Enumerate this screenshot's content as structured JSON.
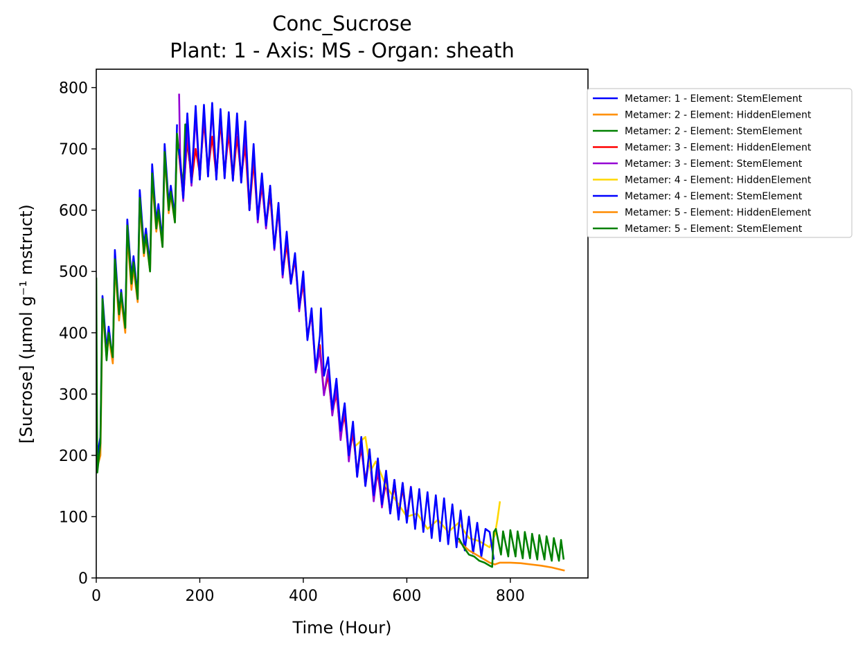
{
  "chart_data": {
    "type": "line",
    "title": "Conc_Sucrose",
    "subtitle": "Plant: 1 - Axis: MS - Organ: sheath",
    "xlabel": "Time (Hour)",
    "ylabel": "[Sucrose] (µmol g⁻¹ mstruct)",
    "xlim": [
      0,
      950
    ],
    "ylim": [
      0,
      830
    ],
    "xticks": [
      0,
      200,
      400,
      600,
      800
    ],
    "yticks": [
      0,
      100,
      200,
      300,
      400,
      500,
      600,
      700,
      800
    ],
    "grid": false,
    "legend_position": "right, outside plot",
    "series": [
      {
        "name": "Metamer: 1 - Element: StemElement",
        "color": "#0000ff",
        "x": [
          0,
          8,
          12,
          20,
          24,
          32,
          36,
          44,
          48,
          56,
          60,
          68,
          72,
          80,
          84,
          92,
          96,
          104,
          108,
          116,
          120,
          128,
          132,
          140,
          144,
          152,
          156
        ],
        "y": [
          190,
          230,
          460,
          370,
          410,
          355,
          535,
          430,
          470,
          410,
          585,
          490,
          525,
          460,
          633,
          540,
          570,
          510,
          675,
          580,
          610,
          550,
          708,
          610,
          640,
          590,
          740
        ]
      },
      {
        "name": "Metamer: 2 - Element: HiddenElement",
        "color": "#ff8c00",
        "x": [
          0,
          8,
          12,
          20,
          24,
          32,
          36,
          44,
          48,
          56,
          60,
          68,
          72,
          80,
          84,
          92,
          96,
          104,
          108,
          116,
          120,
          128,
          132,
          140,
          144,
          152,
          156
        ],
        "y": [
          175,
          200,
          440,
          360,
          395,
          350,
          510,
          420,
          455,
          400,
          560,
          470,
          505,
          450,
          610,
          525,
          555,
          500,
          650,
          565,
          595,
          540,
          690,
          595,
          625,
          580,
          720
        ]
      },
      {
        "name": "Metamer: 2 - Element: StemElement",
        "color": "#008000",
        "x": [
          0,
          2,
          8,
          12,
          20,
          24,
          32,
          36,
          44,
          48,
          56,
          60,
          68,
          72,
          80,
          84,
          92,
          96,
          104,
          108,
          116,
          120,
          128,
          132,
          140,
          144,
          152,
          156,
          160,
          168,
          172,
          180
        ],
        "y": [
          490,
          172,
          220,
          455,
          355,
          400,
          360,
          520,
          430,
          465,
          408,
          575,
          480,
          515,
          455,
          620,
          530,
          560,
          500,
          660,
          570,
          600,
          540,
          695,
          600,
          630,
          580,
          725,
          690,
          640,
          740,
          680
        ]
      },
      {
        "name": "Metamer: 3 - Element: HiddenElement",
        "color": "#ff0000",
        "x": [
          160,
          168,
          176,
          184,
          192,
          200,
          208,
          216,
          224,
          232,
          240,
          248,
          256,
          264,
          272,
          280,
          288,
          296,
          304,
          312,
          320,
          328,
          336,
          344,
          352,
          360,
          368,
          376,
          384,
          392,
          400,
          408,
          416,
          424,
          432,
          440,
          448,
          456,
          464,
          472,
          480,
          488,
          496,
          504,
          512,
          520,
          528,
          536,
          544,
          552,
          560,
          568,
          576,
          584,
          592,
          600,
          608
        ],
        "y": [
          690,
          620,
          720,
          645,
          700,
          660,
          745,
          665,
          720,
          655,
          745,
          660,
          725,
          650,
          720,
          655,
          705,
          600,
          680,
          585,
          640,
          575,
          625,
          540,
          600,
          495,
          545,
          480,
          520,
          440,
          480,
          395,
          430,
          340,
          380,
          300,
          330,
          270,
          300,
          235,
          265,
          200,
          235,
          175,
          210,
          160,
          195,
          140,
          170,
          120,
          155,
          110,
          150,
          105,
          145,
          100,
          140
        ]
      },
      {
        "name": "Metamer: 3 - Element: StemElement",
        "color": "#9400d3",
        "x": [
          160,
          162,
          168,
          176,
          184,
          192,
          200,
          208,
          216,
          224,
          232,
          240,
          248,
          256,
          264,
          272,
          280,
          288,
          296,
          304,
          312,
          320,
          328,
          336,
          344,
          352,
          360,
          368,
          376,
          384,
          392,
          400,
          408,
          416,
          424,
          432,
          440,
          448,
          456,
          464,
          472,
          480,
          488,
          496,
          504,
          512,
          520,
          528,
          536,
          544,
          552,
          560,
          568,
          576,
          584,
          592,
          600,
          608
        ],
        "y": [
          790,
          690,
          615,
          735,
          640,
          755,
          650,
          760,
          655,
          765,
          650,
          760,
          652,
          745,
          650,
          745,
          645,
          730,
          600,
          700,
          580,
          650,
          570,
          640,
          535,
          605,
          490,
          560,
          480,
          525,
          435,
          490,
          390,
          432,
          335,
          372,
          298,
          340,
          265,
          310,
          225,
          280,
          190,
          250,
          165,
          220,
          150,
          200,
          125,
          180,
          115,
          165,
          105,
          160,
          100,
          155,
          95,
          150
        ]
      },
      {
        "name": "Metamer: 4 - Element: HiddenElement",
        "color": "#ffd700",
        "x": [
          500,
          520,
          530,
          540,
          560,
          580,
          600,
          620,
          640,
          660,
          680,
          700,
          720,
          740,
          760,
          770,
          775,
          780
        ],
        "y": [
          215,
          230,
          175,
          190,
          150,
          125,
          100,
          105,
          80,
          95,
          75,
          90,
          65,
          60,
          50,
          70,
          95,
          125
        ]
      },
      {
        "name": "Metamer: 4 - Element: StemElement",
        "color": "#0000ff",
        "x": [
          160,
          168,
          176,
          184,
          192,
          200,
          208,
          216,
          224,
          232,
          240,
          248,
          256,
          264,
          272,
          280,
          288,
          296,
          304,
          312,
          320,
          328,
          336,
          344,
          352,
          360,
          368,
          376,
          384,
          392,
          400,
          408,
          416,
          424,
          432,
          434,
          440,
          448,
          456,
          464,
          472,
          480,
          488,
          496,
          504,
          512,
          520,
          528,
          536,
          544,
          552,
          560,
          568,
          576,
          584,
          592,
          600,
          608,
          616,
          624,
          632,
          640,
          648,
          656,
          664,
          672,
          680,
          688,
          696,
          704,
          712,
          720,
          728,
          736,
          744,
          752,
          760,
          768
        ],
        "y": [
          700,
          620,
          758,
          645,
          770,
          650,
          772,
          655,
          775,
          650,
          765,
          652,
          760,
          648,
          758,
          645,
          745,
          600,
          708,
          585,
          660,
          575,
          640,
          538,
          612,
          495,
          565,
          480,
          530,
          440,
          500,
          388,
          440,
          340,
          395,
          440,
          330,
          360,
          275,
          325,
          240,
          285,
          200,
          255,
          165,
          230,
          150,
          210,
          135,
          195,
          120,
          175,
          105,
          160,
          95,
          155,
          90,
          148,
          80,
          145,
          75,
          140,
          65,
          135,
          60,
          130,
          55,
          120,
          50,
          110,
          45,
          100,
          40,
          90,
          35,
          80,
          75,
          30
        ]
      },
      {
        "name": "Metamer: 5 - Element: HiddenElement",
        "color": "#ff8c00",
        "x": [
          700,
          720,
          740,
          760,
          770,
          780,
          800,
          820,
          840,
          860,
          880,
          900,
          905
        ],
        "y": [
          60,
          45,
          35,
          25,
          22,
          25,
          25,
          24,
          22,
          20,
          17,
          13,
          12
        ]
      },
      {
        "name": "Metamer: 5 - Element: StemElement",
        "color": "#008000",
        "x": [
          700,
          710,
          720,
          730,
          740,
          750,
          760,
          765,
          768,
          772,
          782,
          786,
          796,
          800,
          810,
          814,
          824,
          828,
          838,
          842,
          852,
          856,
          866,
          870,
          880,
          884,
          894,
          898,
          903
        ],
        "y": [
          65,
          50,
          38,
          35,
          28,
          25,
          20,
          18,
          75,
          80,
          38,
          76,
          35,
          78,
          35,
          76,
          32,
          75,
          32,
          72,
          30,
          70,
          30,
          68,
          28,
          65,
          28,
          62,
          30
        ]
      }
    ]
  }
}
